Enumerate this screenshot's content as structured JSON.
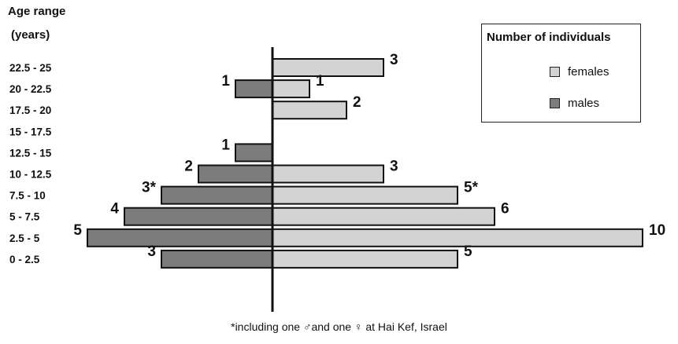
{
  "chart_data": {
    "type": "bar",
    "orientation": "horizontal",
    "ylabel_line1": "Age range",
    "ylabel_line2": "(years)",
    "categories": [
      "22.5 - 25",
      "20 - 22.5",
      "17.5 - 20",
      "15 - 17.5",
      "12.5 - 15",
      "10 - 12.5",
      "7.5 - 10",
      "5 - 7.5",
      "2.5 - 5",
      "0 - 2.5"
    ],
    "series": [
      {
        "name": "females",
        "color": "#d3d3d3",
        "direction": "right",
        "values": [
          3,
          1,
          2,
          0,
          0,
          3,
          5,
          6,
          10,
          5
        ],
        "labels": [
          "3",
          "1",
          "2",
          "",
          "",
          "3",
          "5*",
          "6",
          "10",
          "5"
        ]
      },
      {
        "name": "males",
        "color": "#7c7c7c",
        "direction": "left",
        "values": [
          0,
          1,
          0,
          0,
          1,
          2,
          3,
          4,
          5,
          3
        ],
        "labels": [
          "",
          "1",
          "",
          "",
          "1",
          "2",
          "3*",
          "4",
          "5",
          "3"
        ]
      }
    ],
    "legend_title": "Number of individuals",
    "legend_position": "top-right",
    "footnote": "*including one ♂and one ♀ at Hai Kef, Israel",
    "axis_color": "#111111"
  }
}
